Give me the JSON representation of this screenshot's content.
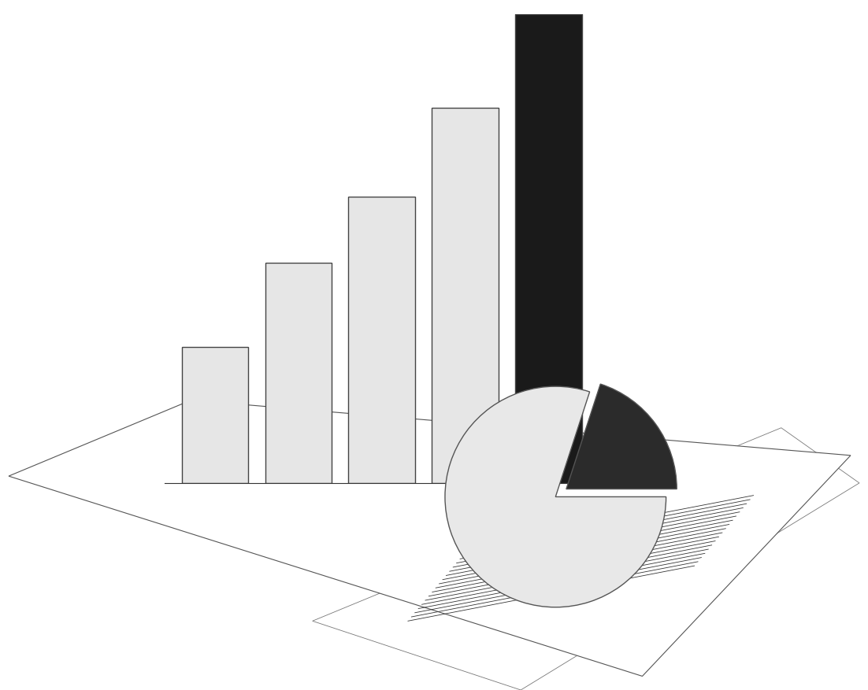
{
  "chart_data": [
    {
      "type": "bar",
      "categories": [
        null,
        null,
        null,
        null,
        null
      ],
      "values": [
        29,
        47,
        61,
        80,
        100
      ],
      "colors": [
        "#e6e6e6",
        "#e6e6e6",
        "#e6e6e6",
        "#e6e6e6",
        "#1a1a1a"
      ],
      "ylim": [
        0,
        100
      ],
      "tick_labels": false
    },
    {
      "type": "pie",
      "values": [
        80,
        20
      ],
      "colors": [
        "#e8e8e8",
        "#2b2b2b"
      ],
      "tick_labels": false
    }
  ]
}
